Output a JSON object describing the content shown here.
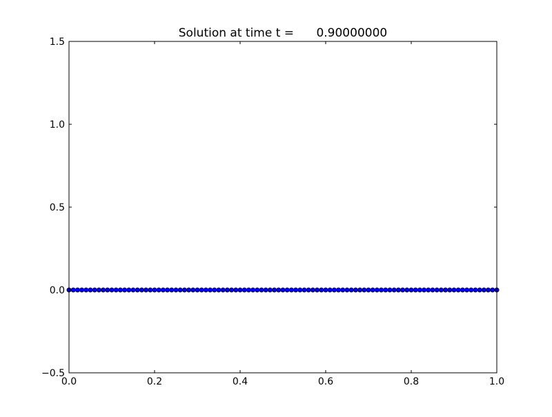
{
  "chart_data": {
    "type": "scatter",
    "title": "Solution at time t =      0.90000000",
    "xlabel": "",
    "ylabel": "",
    "xlim": [
      0.0,
      1.0
    ],
    "ylim": [
      -0.5,
      1.5
    ],
    "grid": false,
    "xticks": [
      "0.0",
      "0.2",
      "0.4",
      "0.6",
      "0.8",
      "1.0"
    ],
    "xtick_values": [
      0.0,
      0.2,
      0.4,
      0.6,
      0.8,
      1.0
    ],
    "yticks": [
      "−0.5",
      "0.0",
      "0.5",
      "1.0",
      "1.5"
    ],
    "ytick_values": [
      -0.5,
      0.0,
      0.5,
      1.0,
      1.5
    ],
    "marker": "circle",
    "marker_color": "#0000ff",
    "marker_edge_color": "#000000",
    "x": [
      0.0,
      0.01,
      0.02,
      0.03,
      0.04,
      0.05,
      0.06,
      0.07,
      0.08,
      0.09,
      0.1,
      0.11,
      0.12,
      0.13,
      0.14,
      0.15,
      0.16,
      0.17,
      0.18,
      0.19,
      0.2,
      0.21,
      0.22,
      0.23,
      0.24,
      0.25,
      0.26,
      0.27,
      0.28,
      0.29,
      0.3,
      0.31,
      0.32,
      0.33,
      0.34,
      0.35,
      0.36,
      0.37,
      0.38,
      0.39,
      0.4,
      0.41,
      0.42,
      0.43,
      0.44,
      0.45,
      0.46,
      0.47,
      0.48,
      0.49,
      0.5,
      0.51,
      0.52,
      0.53,
      0.54,
      0.55,
      0.56,
      0.57,
      0.58,
      0.59,
      0.6,
      0.61,
      0.62,
      0.63,
      0.64,
      0.65,
      0.66,
      0.67,
      0.68,
      0.69,
      0.7,
      0.71,
      0.72,
      0.73,
      0.74,
      0.75,
      0.76,
      0.77,
      0.78,
      0.79,
      0.8,
      0.81,
      0.82,
      0.83,
      0.84,
      0.85,
      0.86,
      0.87,
      0.88,
      0.89,
      0.9,
      0.91,
      0.92,
      0.93,
      0.94,
      0.95,
      0.96,
      0.97,
      0.98,
      0.99,
      1.0
    ],
    "y": [
      0,
      0,
      0,
      0,
      0,
      0,
      0,
      0,
      0,
      0,
      0,
      0,
      0,
      0,
      0,
      0,
      0,
      0,
      0,
      0,
      0,
      0,
      0,
      0,
      0,
      0,
      0,
      0,
      0,
      0,
      0,
      0,
      0,
      0,
      0,
      0,
      0,
      0,
      0,
      0,
      0,
      0,
      0,
      0,
      0,
      0,
      0,
      0,
      0,
      0,
      0,
      0,
      0,
      0,
      0,
      0,
      0,
      0,
      0,
      0,
      0,
      0,
      0,
      0,
      0,
      0,
      0,
      0,
      0,
      0,
      0,
      0,
      0,
      0,
      0,
      0,
      0,
      0,
      0,
      0,
      0,
      0,
      0,
      0,
      0,
      0,
      0,
      0,
      0,
      0,
      0,
      0,
      0,
      0,
      0,
      0,
      0,
      0,
      0,
      0,
      0
    ]
  }
}
